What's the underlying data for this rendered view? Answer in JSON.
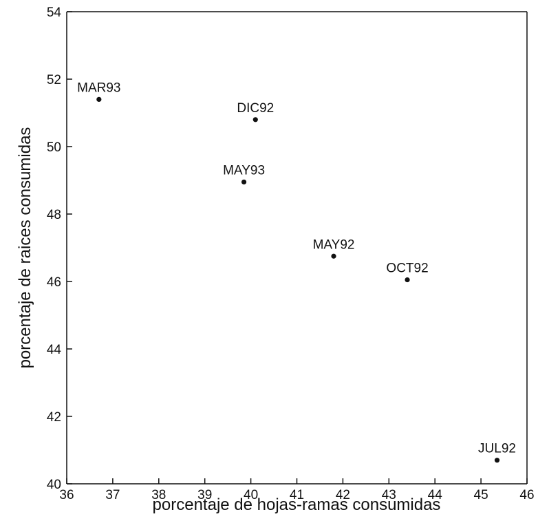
{
  "chart_data": {
    "type": "scatter",
    "title": "",
    "xlabel": "porcentaje de hojas-ramas consumidas",
    "ylabel": "porcentaje de raices consumidas",
    "xlim": [
      36,
      46
    ],
    "ylim": [
      40,
      54
    ],
    "xticks": [
      "36",
      "37",
      "38",
      "39",
      "40",
      "41",
      "42",
      "43",
      "44",
      "45",
      "46"
    ],
    "yticks": [
      "40",
      "42",
      "44",
      "46",
      "48",
      "50",
      "52",
      "54"
    ],
    "grid": false,
    "points": [
      {
        "label": "MAR93",
        "x": 36.7,
        "y": 51.4
      },
      {
        "label": "DIC92",
        "x": 40.1,
        "y": 50.8
      },
      {
        "label": "MAY93",
        "x": 39.85,
        "y": 48.95
      },
      {
        "label": "MAY92",
        "x": 41.8,
        "y": 46.75
      },
      {
        "label": "OCT92",
        "x": 43.4,
        "y": 46.05
      },
      {
        "label": "JUL92",
        "x": 45.35,
        "y": 40.7
      }
    ]
  }
}
